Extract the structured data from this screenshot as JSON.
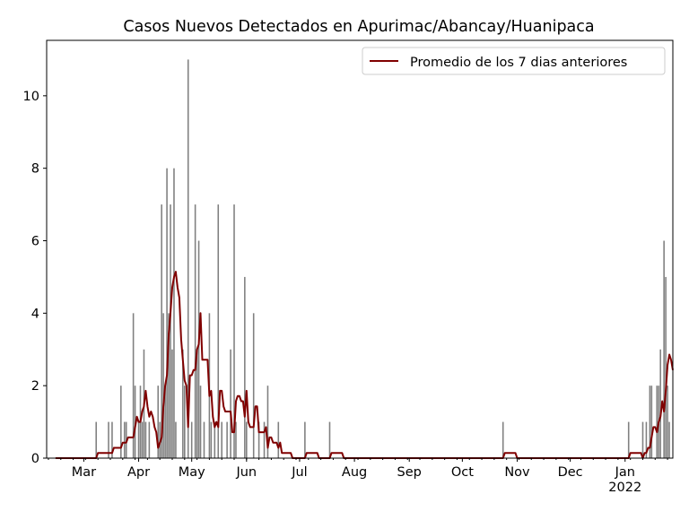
{
  "chart_data": {
    "type": "bar",
    "title": "Casos Nuevos Detectados en Apurimac/Abancay/Huanipaca",
    "xlabel": "",
    "ylabel": "",
    "xlim": [
      "2021-02-08",
      "2022-01-28"
    ],
    "ylim": [
      0,
      11.53
    ],
    "yticks": [
      0,
      2,
      4,
      6,
      8,
      10
    ],
    "xticks": [
      {
        "date": "2021-03-01",
        "label": "Mar"
      },
      {
        "date": "2021-04-01",
        "label": "Apr"
      },
      {
        "date": "2021-05-01",
        "label": "May"
      },
      {
        "date": "2021-06-01",
        "label": "Jun"
      },
      {
        "date": "2021-07-01",
        "label": "Jul"
      },
      {
        "date": "2021-08-01",
        "label": "Aug"
      },
      {
        "date": "2021-09-01",
        "label": "Sep"
      },
      {
        "date": "2021-10-01",
        "label": "Oct"
      },
      {
        "date": "2021-11-01",
        "label": "Nov"
      },
      {
        "date": "2021-12-01",
        "label": "Dec"
      },
      {
        "date": "2022-01-01",
        "label": "Jan\n2022"
      }
    ],
    "grid": false,
    "legend": {
      "position": "top-right",
      "entries": [
        "Promedio de los 7 dias anteriores"
      ]
    },
    "colors": {
      "bars": "#808080",
      "line": "#800000"
    },
    "daily_cases": [
      [
        "2021-03-08",
        1
      ],
      [
        "2021-03-15",
        1
      ],
      [
        "2021-03-17",
        1
      ],
      [
        "2021-03-22",
        2
      ],
      [
        "2021-03-24",
        1
      ],
      [
        "2021-03-25",
        1
      ],
      [
        "2021-03-29",
        4
      ],
      [
        "2021-03-30",
        2
      ],
      [
        "2021-04-01",
        1
      ],
      [
        "2021-04-02",
        2
      ],
      [
        "2021-04-03",
        1
      ],
      [
        "2021-04-04",
        3
      ],
      [
        "2021-04-05",
        1
      ],
      [
        "2021-04-07",
        1
      ],
      [
        "2021-04-12",
        2
      ],
      [
        "2021-04-13",
        1
      ],
      [
        "2021-04-14",
        7
      ],
      [
        "2021-04-15",
        4
      ],
      [
        "2021-04-16",
        2
      ],
      [
        "2021-04-17",
        8
      ],
      [
        "2021-04-18",
        4
      ],
      [
        "2021-04-19",
        7
      ],
      [
        "2021-04-20",
        3
      ],
      [
        "2021-04-21",
        8
      ],
      [
        "2021-04-22",
        1
      ],
      [
        "2021-04-26",
        3
      ],
      [
        "2021-04-27",
        2
      ],
      [
        "2021-04-29",
        11
      ],
      [
        "2021-05-01",
        1
      ],
      [
        "2021-05-03",
        7
      ],
      [
        "2021-05-04",
        3
      ],
      [
        "2021-05-05",
        6
      ],
      [
        "2021-05-06",
        2
      ],
      [
        "2021-05-08",
        1
      ],
      [
        "2021-05-11",
        4
      ],
      [
        "2021-05-12",
        1
      ],
      [
        "2021-05-14",
        1
      ],
      [
        "2021-05-16",
        7
      ],
      [
        "2021-05-18",
        1
      ],
      [
        "2021-05-21",
        1
      ],
      [
        "2021-05-23",
        3
      ],
      [
        "2021-05-25",
        7
      ],
      [
        "2021-05-26",
        1
      ],
      [
        "2021-05-31",
        5
      ],
      [
        "2021-06-01",
        1
      ],
      [
        "2021-06-05",
        4
      ],
      [
        "2021-06-08",
        1
      ],
      [
        "2021-06-11",
        1
      ],
      [
        "2021-06-13",
        2
      ],
      [
        "2021-06-19",
        1
      ],
      [
        "2021-07-04",
        1
      ],
      [
        "2021-07-18",
        1
      ],
      [
        "2021-10-24",
        1
      ],
      [
        "2022-01-03",
        1
      ],
      [
        "2022-01-11",
        1
      ],
      [
        "2022-01-13",
        1
      ],
      [
        "2022-01-15",
        2
      ],
      [
        "2022-01-16",
        2
      ],
      [
        "2022-01-19",
        2
      ],
      [
        "2022-01-20",
        2
      ],
      [
        "2022-01-21",
        3
      ],
      [
        "2022-01-23",
        6
      ],
      [
        "2022-01-24",
        5
      ],
      [
        "2022-01-25",
        2
      ],
      [
        "2022-01-26",
        1
      ]
    ],
    "line_series": {
      "name": "Promedio de los 7 dias anteriores",
      "window_days": 7,
      "start": "2021-02-13"
    }
  }
}
